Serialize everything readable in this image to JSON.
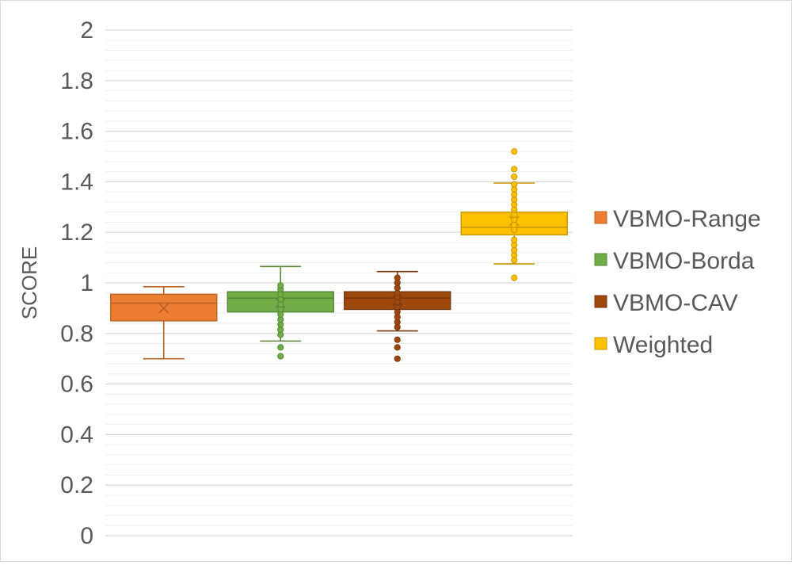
{
  "chart_data": {
    "type": "box",
    "title": "",
    "xlabel": "",
    "ylabel": "SCORE",
    "ylim": [
      0,
      2
    ],
    "yticks": [
      "0",
      "0.2",
      "0.4",
      "0.6",
      "0.8",
      "1",
      "1.2",
      "1.4",
      "1.6",
      "1.8",
      "2"
    ],
    "grid": true,
    "legend_position": "right",
    "series": [
      {
        "name": "VBMO-Range",
        "color": "#ED7D31",
        "whisker_low": 0.7,
        "q1": 0.85,
        "median": 0.92,
        "mean": 0.9,
        "q3": 0.955,
        "whisker_high": 0.985,
        "outliers": []
      },
      {
        "name": "VBMO-Borda",
        "color": "#70AD47",
        "whisker_low": 0.77,
        "q1": 0.885,
        "median": 0.94,
        "mean": 0.92,
        "q3": 0.965,
        "whisker_high": 1.065,
        "outliers": [
          0.71,
          0.745,
          0.795,
          0.815,
          0.835,
          0.855,
          0.875,
          0.895,
          0.915,
          0.935,
          0.955,
          0.975,
          0.99
        ]
      },
      {
        "name": "VBMO-CAV",
        "color": "#9E480E",
        "whisker_low": 0.81,
        "q1": 0.895,
        "median": 0.94,
        "mean": 0.93,
        "q3": 0.965,
        "whisker_high": 1.045,
        "outliers": [
          0.7,
          0.745,
          0.775,
          0.825,
          0.845,
          0.865,
          0.885,
          0.905,
          0.925,
          0.945,
          0.96,
          0.98,
          1.0,
          1.02
        ]
      },
      {
        "name": "Weighted",
        "color": "#FFC000",
        "whisker_low": 1.075,
        "q1": 1.19,
        "median": 1.22,
        "mean": 1.245,
        "q3": 1.28,
        "whisker_high": 1.395,
        "outliers": [
          1.02,
          1.09,
          1.11,
          1.13,
          1.15,
          1.17,
          1.21,
          1.23,
          1.25,
          1.27,
          1.29,
          1.31,
          1.33,
          1.35,
          1.37,
          1.39,
          1.42,
          1.45,
          1.52
        ]
      }
    ]
  }
}
